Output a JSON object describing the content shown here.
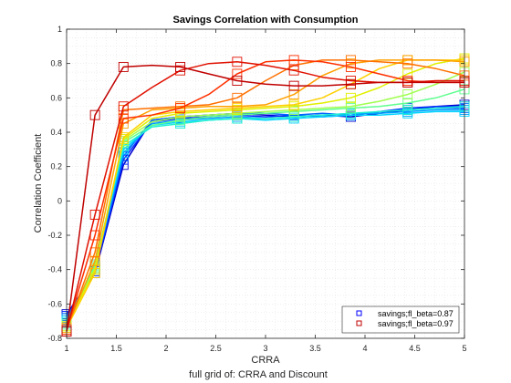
{
  "chart_data": {
    "type": "line",
    "title": "Savings Correlation with Consumption",
    "xlabel": "CRRA",
    "ylabel": "Correlation Coefficient",
    "caption": "full grid of: CRRA and Discount",
    "xlim": [
      1,
      5
    ],
    "ylim": [
      -0.8,
      1
    ],
    "xticks": [
      1,
      1.5,
      2,
      2.5,
      3,
      3.5,
      4,
      4.5,
      5
    ],
    "xtick_labels": [
      "1",
      "1.5",
      "2",
      "2.5",
      "3",
      "3.5",
      "4",
      "4.5",
      "5"
    ],
    "yticks": [
      -0.8,
      -0.6,
      -0.4,
      -0.2,
      0,
      0.2,
      0.4,
      0.6,
      0.8,
      1
    ],
    "ytick_labels": [
      "-0.8",
      "-0.6",
      "-0.4",
      "-0.2",
      "0",
      "0.2",
      "0.4",
      "0.6",
      "0.8",
      "1"
    ],
    "grid": "minor dotted",
    "legend_position": "bottom-right",
    "legend": [
      {
        "label": "savings;fl_beta=0.87",
        "color": "#0000ff"
      },
      {
        "label": "savings;fl_beta=0.97",
        "color": "#c00000"
      }
    ],
    "x": [
      1,
      1.2857,
      1.5714,
      1.8571,
      2.1429,
      2.4286,
      2.7143,
      3,
      3.2857,
      3.5714,
      3.8571,
      4.1429,
      4.4286,
      4.7143,
      5
    ],
    "series": [
      {
        "color": "#0000cc",
        "marker_every": 2,
        "values": [
          -0.66,
          -0.42,
          0.21,
          0.47,
          0.49,
          0.5,
          0.51,
          0.5,
          0.49,
          0.5,
          0.49,
          0.51,
          0.53,
          0.55,
          0.56
        ]
      },
      {
        "color": "#0028ff",
        "marker_every": 2,
        "values": [
          -0.67,
          -0.41,
          0.24,
          0.46,
          0.48,
          0.49,
          0.5,
          0.49,
          0.5,
          0.49,
          0.5,
          0.52,
          0.54,
          0.55,
          0.55
        ]
      },
      {
        "color": "#0066ff",
        "marker_every": 2,
        "values": [
          -0.68,
          -0.4,
          0.26,
          0.47,
          0.49,
          0.5,
          0.51,
          0.51,
          0.5,
          0.51,
          0.5,
          0.52,
          0.53,
          0.54,
          0.54
        ]
      },
      {
        "color": "#00a0ff",
        "marker_every": 2,
        "values": [
          -0.69,
          -0.39,
          0.28,
          0.45,
          0.47,
          0.48,
          0.49,
          0.48,
          0.49,
          0.5,
          0.51,
          0.51,
          0.52,
          0.53,
          0.53
        ]
      },
      {
        "color": "#00d4ff",
        "marker_every": 2,
        "values": [
          -0.7,
          -0.38,
          0.3,
          0.44,
          0.46,
          0.47,
          0.48,
          0.47,
          0.48,
          0.49,
          0.5,
          0.5,
          0.51,
          0.52,
          0.52
        ]
      },
      {
        "color": "#20f0d0",
        "marker_every": 2,
        "values": [
          -0.71,
          -0.37,
          0.32,
          0.43,
          0.45,
          0.47,
          0.48,
          0.48,
          0.49,
          0.5,
          0.51,
          0.52,
          0.53,
          0.54,
          0.55
        ]
      },
      {
        "color": "#60ff90",
        "marker_every": 2,
        "values": [
          -0.72,
          -0.38,
          0.34,
          0.44,
          0.47,
          0.49,
          0.5,
          0.51,
          0.52,
          0.53,
          0.54,
          0.55,
          0.57,
          0.6,
          0.65
        ]
      },
      {
        "color": "#a0ff50",
        "marker_every": 2,
        "values": [
          -0.73,
          -0.39,
          0.35,
          0.46,
          0.49,
          0.5,
          0.51,
          0.52,
          0.53,
          0.54,
          0.55,
          0.58,
          0.62,
          0.68,
          0.75
        ]
      },
      {
        "color": "#e0f000",
        "marker_every": 2,
        "values": [
          -0.73,
          -0.4,
          0.36,
          0.48,
          0.51,
          0.52,
          0.53,
          0.54,
          0.55,
          0.57,
          0.6,
          0.66,
          0.74,
          0.8,
          0.83
        ]
      },
      {
        "color": "#ffd000",
        "marker_every": 2,
        "values": [
          -0.74,
          -0.42,
          0.37,
          0.5,
          0.52,
          0.53,
          0.54,
          0.55,
          0.56,
          0.6,
          0.68,
          0.77,
          0.82,
          0.82,
          0.82
        ]
      },
      {
        "color": "#ffa000",
        "marker_every": 2,
        "values": [
          -0.74,
          -0.35,
          0.45,
          0.53,
          0.54,
          0.55,
          0.55,
          0.56,
          0.62,
          0.73,
          0.8,
          0.82,
          0.82,
          0.82,
          0.81
        ]
      },
      {
        "color": "#ff7000",
        "marker_every": 2,
        "values": [
          -0.75,
          -0.3,
          0.53,
          0.54,
          0.55,
          0.56,
          0.6,
          0.7,
          0.79,
          0.82,
          0.82,
          0.81,
          0.8,
          0.77,
          0.73
        ]
      },
      {
        "color": "#ff3000",
        "marker_every": 2,
        "values": [
          -0.75,
          -0.2,
          0.48,
          0.5,
          0.54,
          0.62,
          0.74,
          0.81,
          0.82,
          0.81,
          0.78,
          0.74,
          0.7,
          0.69,
          0.69
        ]
      },
      {
        "color": "#e01000",
        "marker_every": 2,
        "values": [
          -0.76,
          -0.08,
          0.55,
          0.66,
          0.76,
          0.8,
          0.81,
          0.79,
          0.76,
          0.72,
          0.7,
          0.69,
          0.69,
          0.7,
          0.7
        ]
      },
      {
        "color": "#c00000",
        "marker_every": 2,
        "values": [
          -0.76,
          0.5,
          0.78,
          0.79,
          0.78,
          0.74,
          0.7,
          0.68,
          0.67,
          0.67,
          0.68,
          0.69,
          0.69,
          0.69,
          0.69
        ]
      }
    ]
  }
}
